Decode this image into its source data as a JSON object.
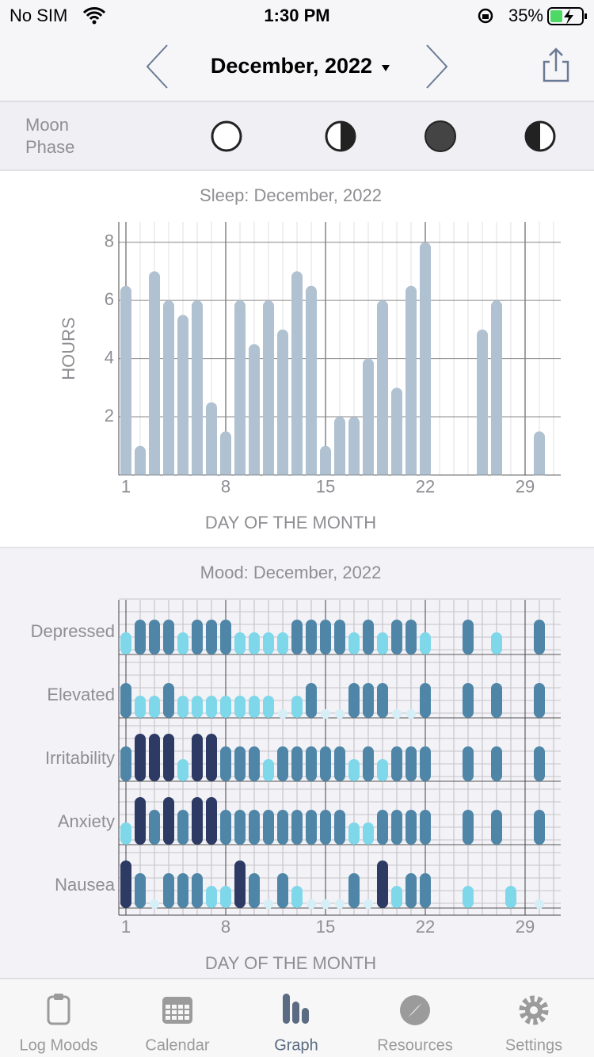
{
  "status_bar": {
    "carrier": "No SIM",
    "time": "1:30 PM",
    "battery": "35%"
  },
  "nav": {
    "title": "December, 2022"
  },
  "moon_phase": {
    "label": "Moon Phase"
  },
  "chart_data": [
    {
      "type": "bar",
      "title": "Sleep: December, 2022",
      "y_label": "HOURS",
      "x_label": "DAY OF THE MONTH",
      "x": [
        1,
        2,
        3,
        4,
        5,
        6,
        7,
        8,
        9,
        10,
        11,
        12,
        13,
        14,
        15,
        16,
        17,
        18,
        19,
        20,
        21,
        22,
        23,
        24,
        25,
        26,
        27,
        28,
        29,
        30,
        31
      ],
      "values": [
        6.5,
        1,
        7,
        6,
        5.5,
        6,
        2.5,
        1.5,
        6,
        4.5,
        6,
        5,
        7,
        6.5,
        1,
        2,
        2,
        4,
        6,
        3,
        6.5,
        8,
        null,
        null,
        null,
        5,
        6,
        null,
        null,
        1.5,
        null
      ],
      "color": "#b0c1d1",
      "xlim": [
        0.5,
        31.5
      ],
      "ylim": [
        0,
        8.7
      ],
      "xticks": [
        1,
        8,
        15,
        22,
        29
      ],
      "yticks": [
        2,
        4,
        6,
        8
      ],
      "grid": true
    },
    {
      "type": "severity",
      "title": "Mood: December, 2022",
      "x_label": "DAY OF THE MONTH",
      "x": [
        1,
        2,
        3,
        4,
        5,
        6,
        7,
        8,
        9,
        10,
        11,
        12,
        13,
        14,
        15,
        16,
        17,
        18,
        19,
        20,
        21,
        22,
        23,
        24,
        25,
        26,
        27,
        28,
        29,
        30,
        31
      ],
      "xlim": [
        0.5,
        31.5
      ],
      "xticks": [
        1,
        8,
        15,
        22,
        29
      ],
      "level_colors": [
        "#d6eff6",
        "#7fd7ea",
        "#4f86a8",
        "#2d3a63"
      ],
      "series": [
        {
          "name": "Depressed",
          "values": [
            1,
            2,
            2,
            2,
            1,
            2,
            2,
            2,
            1,
            1,
            1,
            1,
            2,
            2,
            2,
            2,
            1,
            2,
            1,
            2,
            2,
            1,
            null,
            null,
            2,
            null,
            1,
            null,
            null,
            2,
            null
          ]
        },
        {
          "name": "Elevated",
          "values": [
            2,
            1,
            1,
            2,
            1,
            1,
            1,
            1,
            1,
            1,
            1,
            0,
            1,
            2,
            0,
            0,
            2,
            2,
            2,
            0,
            0,
            2,
            null,
            null,
            2,
            null,
            2,
            null,
            null,
            2,
            null
          ]
        },
        {
          "name": "Irritability",
          "values": [
            2,
            3,
            3,
            3,
            1,
            3,
            3,
            2,
            2,
            2,
            1,
            2,
            2,
            2,
            2,
            2,
            1,
            2,
            1,
            2,
            2,
            2,
            null,
            null,
            2,
            null,
            2,
            null,
            null,
            2,
            null
          ]
        },
        {
          "name": "Anxiety",
          "values": [
            1,
            3,
            2,
            3,
            2,
            3,
            3,
            2,
            2,
            2,
            2,
            2,
            2,
            2,
            2,
            2,
            1,
            1,
            2,
            2,
            2,
            2,
            null,
            null,
            2,
            null,
            2,
            null,
            null,
            2,
            null
          ]
        },
        {
          "name": "Nausea",
          "values": [
            3,
            2,
            0,
            2,
            2,
            2,
            1,
            1,
            3,
            2,
            0,
            2,
            1,
            0,
            0,
            0,
            2,
            0,
            3,
            1,
            2,
            2,
            null,
            null,
            1,
            null,
            null,
            1,
            null,
            0,
            null
          ]
        }
      ]
    }
  ],
  "tab_bar": {
    "items": [
      "Log Moods",
      "Calendar",
      "Graph",
      "Resources",
      "Settings"
    ],
    "active": 2
  }
}
